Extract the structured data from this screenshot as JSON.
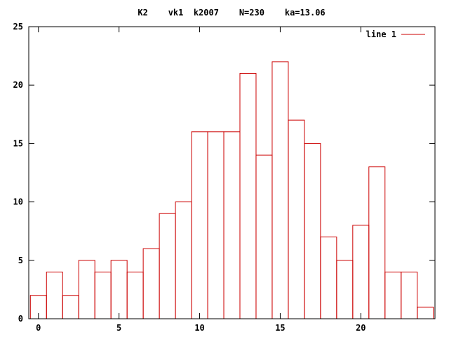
{
  "chart_data": {
    "type": "bar",
    "title": "K2    vk1  k2007    N=230    ka=13.06",
    "xlabel": "",
    "ylabel": "",
    "x": [
      0,
      1,
      2,
      3,
      4,
      5,
      6,
      7,
      8,
      9,
      10,
      11,
      12,
      13,
      14,
      15,
      16,
      17,
      18,
      19,
      20,
      21,
      22,
      23,
      24
    ],
    "series": [
      {
        "name": "line 1",
        "values": [
          2,
          4,
          2,
          5,
          4,
          5,
          4,
          6,
          9,
          10,
          16,
          16,
          16,
          21,
          14,
          22,
          17,
          15,
          7,
          5,
          8,
          13,
          4,
          4,
          1
        ]
      }
    ],
    "xlim": [
      -0.6,
      24.6
    ],
    "ylim": [
      0,
      25
    ],
    "xticks": [
      "0",
      "5",
      "10",
      "15",
      "20"
    ],
    "yticks": [
      "0",
      "5",
      "10",
      "15",
      "20",
      "25"
    ],
    "legend": "top-right",
    "grid": false,
    "color": "#cc0000"
  }
}
